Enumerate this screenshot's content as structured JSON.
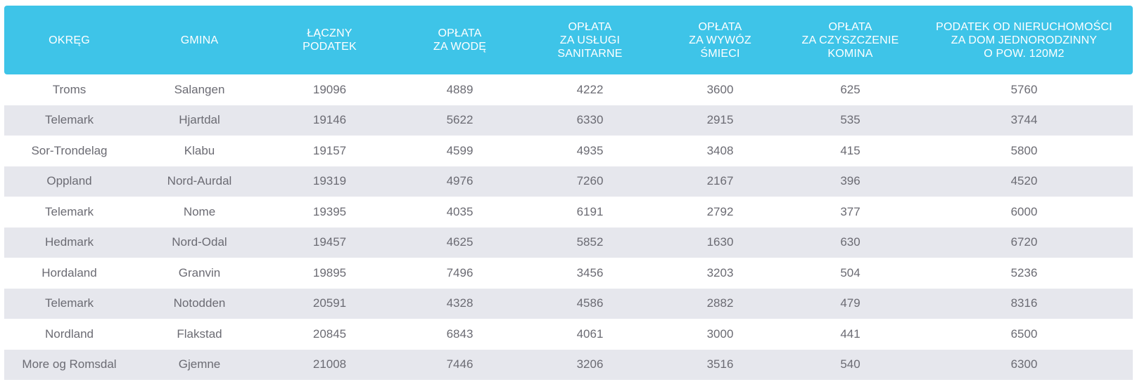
{
  "colors": {
    "header_bg": "#3ec4e8",
    "header_text": "#ffffff",
    "stripe_bg": "#e6e7ed",
    "cell_text": "#6b6b73"
  },
  "table": {
    "headers": [
      [
        "OKRĘG"
      ],
      [
        "GMINA"
      ],
      [
        "ŁĄCZNY",
        "PODATEK"
      ],
      [
        "OPŁATA",
        "ZA WODĘ"
      ],
      [
        "OPŁATA",
        "ZA USŁUGI",
        "SANITARNE"
      ],
      [
        "OPŁATA",
        "ZA WYWÓZ",
        "ŚMIECI"
      ],
      [
        "OPŁATA",
        "ZA CZYSZCZENIE",
        "KOMINA"
      ],
      [
        "PODATEK OD NIERUCHOMOŚCI",
        "ZA DOM JEDNORODZINNY",
        "O POW. 120M2"
      ]
    ],
    "rows": [
      [
        "Troms",
        "Salangen",
        "19096",
        "4889",
        "4222",
        "3600",
        "625",
        "5760"
      ],
      [
        "Telemark",
        "Hjartdal",
        "19146",
        "5622",
        "6330",
        "2915",
        "535",
        "3744"
      ],
      [
        "Sor-Trondelag",
        "Klabu",
        "19157",
        "4599",
        "4935",
        "3408",
        "415",
        "5800"
      ],
      [
        "Oppland",
        "Nord-Aurdal",
        "19319",
        "4976",
        "7260",
        "2167",
        "396",
        "4520"
      ],
      [
        "Telemark",
        "Nome",
        "19395",
        "4035",
        "6191",
        "2792",
        "377",
        "6000"
      ],
      [
        "Hedmark",
        "Nord-Odal",
        "19457",
        "4625",
        "5852",
        "1630",
        "630",
        "6720"
      ],
      [
        "Hordaland",
        "Granvin",
        "19895",
        "7496",
        "3456",
        "3203",
        "504",
        "5236"
      ],
      [
        "Telemark",
        "Notodden",
        "20591",
        "4328",
        "4586",
        "2882",
        "479",
        "8316"
      ],
      [
        "Nordland",
        "Flakstad",
        "20845",
        "6843",
        "4061",
        "3000",
        "441",
        "6500"
      ],
      [
        "More og Romsdal",
        "Gjemne",
        "21008",
        "7446",
        "3206",
        "3516",
        "540",
        "6300"
      ]
    ]
  }
}
